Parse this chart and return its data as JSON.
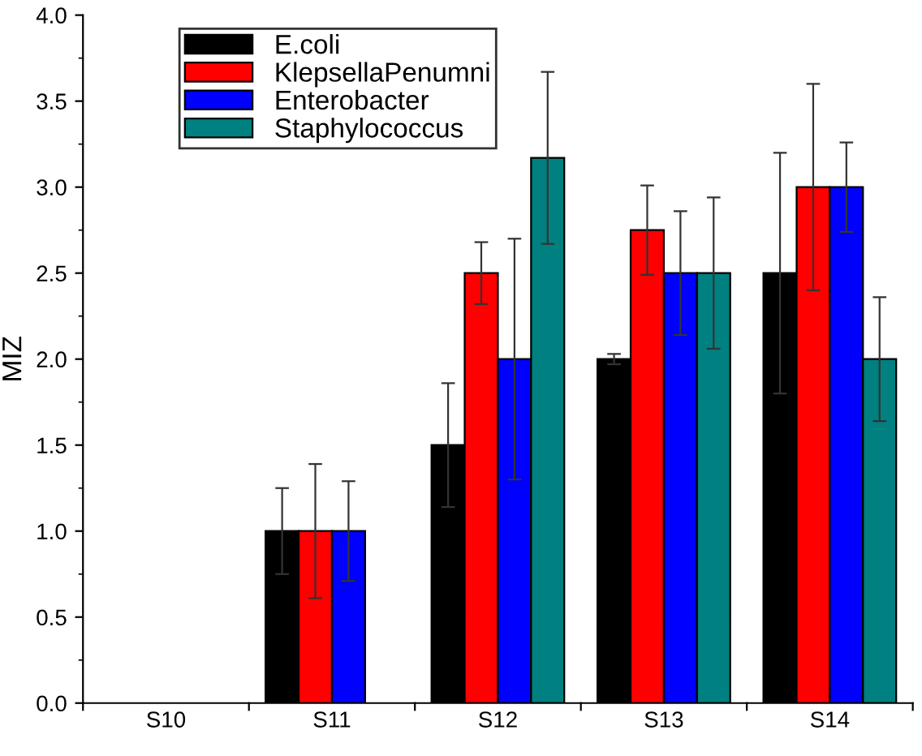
{
  "chart_data": {
    "type": "bar",
    "ylabel": "MIZ",
    "categories": [
      "S10",
      "S11",
      "S12",
      "S13",
      "S14"
    ],
    "series": [
      {
        "name": "E.coli",
        "color": "#000000",
        "values": [
          null,
          1.0,
          1.5,
          2.0,
          2.5
        ],
        "errors": [
          null,
          0.25,
          0.36,
          0.03,
          0.7
        ]
      },
      {
        "name": "KlepsellaPenumni",
        "color": "#ff0000",
        "values": [
          null,
          1.0,
          2.5,
          2.75,
          3.0
        ],
        "errors": [
          null,
          0.39,
          0.18,
          0.26,
          0.6
        ]
      },
      {
        "name": "Enterobacter",
        "color": "#0000ff",
        "values": [
          null,
          1.0,
          2.0,
          2.5,
          3.0
        ],
        "errors": [
          null,
          0.29,
          0.7,
          0.36,
          0.26
        ]
      },
      {
        "name": "Staphylococcus",
        "color": "#008080",
        "values": [
          null,
          null,
          3.17,
          2.5,
          2.0
        ],
        "errors": [
          null,
          null,
          0.5,
          0.44,
          0.36
        ]
      }
    ],
    "ylim": [
      0,
      4.0
    ],
    "yticks": [
      {
        "value": 0,
        "label": "0.0"
      },
      {
        "value": 0.5,
        "label": "0.5"
      },
      {
        "value": 1.0,
        "label": "1.0"
      },
      {
        "value": 1.5,
        "label": "1.5"
      },
      {
        "value": 2.0,
        "label": "2.0"
      },
      {
        "value": 2.5,
        "label": "2.5"
      },
      {
        "value": 3.0,
        "label": "3.0"
      },
      {
        "value": 3.5,
        "label": "3.5"
      },
      {
        "value": 4.0,
        "label": "4.0"
      }
    ],
    "grid": false,
    "legend": "top left"
  }
}
